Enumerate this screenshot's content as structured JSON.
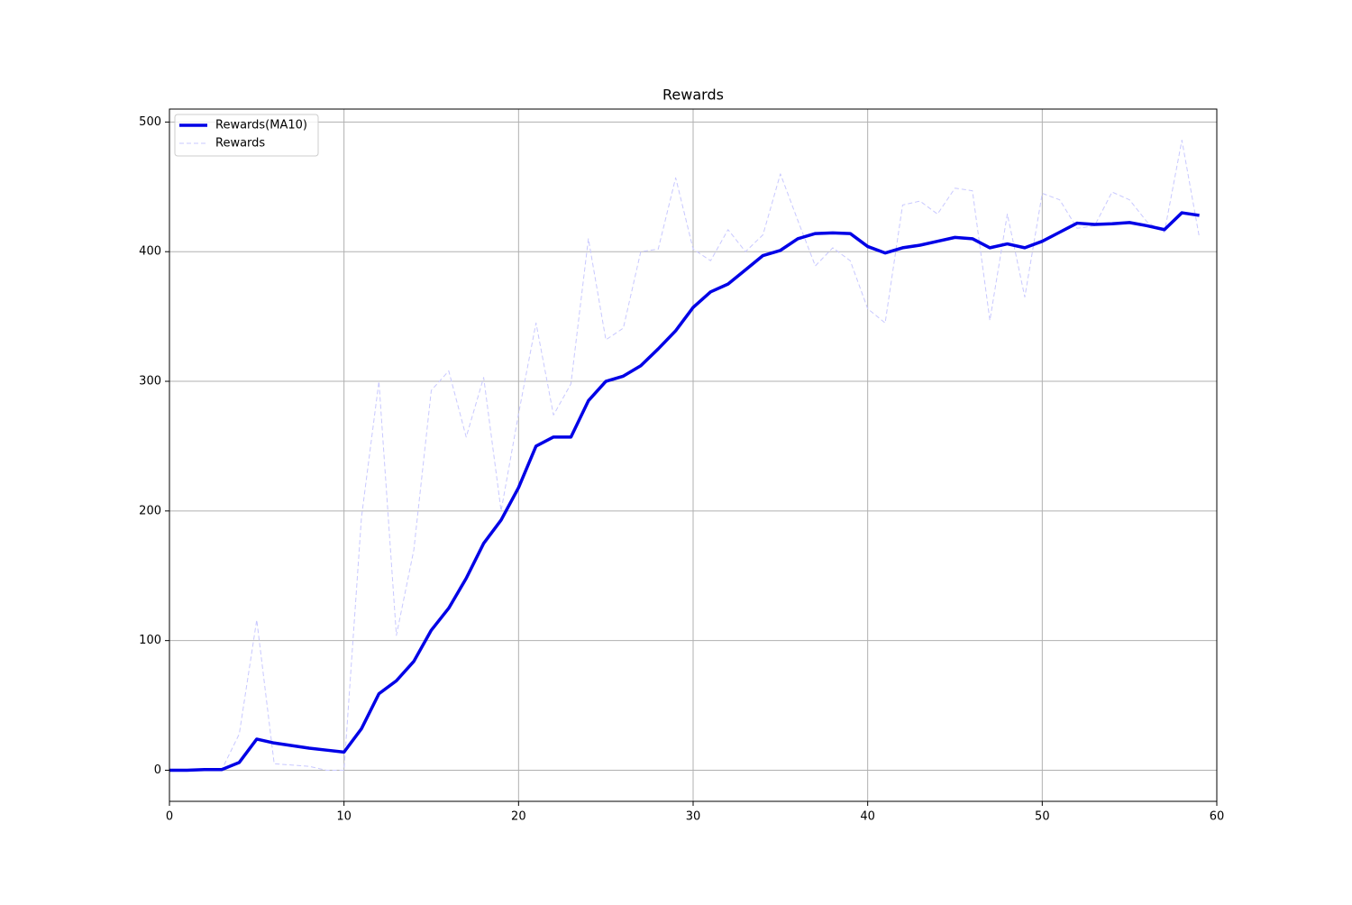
{
  "chart_data": {
    "type": "line",
    "title": "Rewards",
    "x": [
      0,
      1,
      2,
      3,
      4,
      5,
      6,
      7,
      8,
      9,
      10,
      11,
      12,
      13,
      14,
      15,
      16,
      17,
      18,
      19,
      20,
      21,
      22,
      23,
      24,
      25,
      26,
      27,
      28,
      29,
      30,
      31,
      32,
      33,
      34,
      35,
      36,
      37,
      38,
      39,
      40,
      41,
      42,
      43,
      44,
      45,
      46,
      47,
      48,
      49,
      50,
      51,
      52,
      53,
      54,
      55,
      56,
      57,
      58,
      59
    ],
    "series": [
      {
        "name": "Rewards(MA10)",
        "color": "#0000e6",
        "style": "solid",
        "values": [
          0,
          0,
          0.5,
          0.5,
          6,
          24,
          21,
          19,
          17,
          15.5,
          14,
          32,
          59,
          69,
          84,
          108,
          125,
          148,
          175,
          193,
          218,
          250,
          257,
          257,
          285,
          300,
          304,
          312,
          325,
          339,
          357,
          369,
          375,
          386,
          397,
          401,
          410,
          414,
          414.5,
          414,
          404,
          399,
          403,
          405,
          408,
          411,
          410,
          403,
          406,
          403,
          408,
          415,
          422,
          421,
          421.5,
          422.5,
          420,
          417,
          430,
          428
        ]
      },
      {
        "name": "Rewards",
        "color": "#c8c8ff",
        "style": "dashed",
        "values": [
          0,
          0,
          0.5,
          0.5,
          28,
          116,
          5,
          4,
          3,
          0,
          0,
          195,
          300,
          104,
          170,
          293,
          308,
          257,
          303,
          200,
          275,
          345,
          274,
          298,
          410,
          332,
          341,
          400,
          402,
          457,
          402,
          393,
          417,
          400,
          413,
          460,
          424,
          389,
          403,
          393,
          356,
          345,
          436,
          439,
          429,
          449,
          447,
          347,
          429,
          365,
          445,
          440,
          418,
          420,
          446,
          440,
          423,
          415,
          486,
          411
        ]
      }
    ],
    "xlim": [
      0,
      60
    ],
    "xticks": [
      0,
      10,
      20,
      30,
      40,
      50,
      60
    ],
    "ylim": [
      -24,
      510
    ],
    "yticks": [
      0,
      100,
      200,
      300,
      400,
      500
    ],
    "grid": true,
    "legend": "upper-left"
  }
}
